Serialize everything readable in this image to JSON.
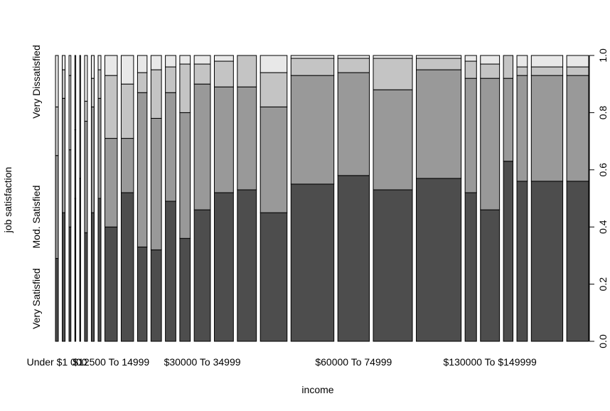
{
  "chart_data": {
    "type": "bar",
    "stacked": "proportional (spineplot)",
    "xlabel": "income",
    "ylabel": "job satisfaction",
    "ylim": [
      0,
      1
    ],
    "y_ticks": [
      "0.0",
      "0.2",
      "0.4",
      "0.6",
      "0.8",
      "1.0"
    ],
    "x_tick_labels": [
      "Under $1 000",
      "$12500 To 14999",
      "$30000 To 34999",
      "$60000 To 74999",
      "$130000 To $149999"
    ],
    "x_tick_label_positions": [
      0,
      8,
      14,
      19,
      23
    ],
    "categories_left_labels": [
      "Very Satisfied",
      "Mod. Satisfied",
      "Very Dissatisfied"
    ],
    "segment_colors": [
      "#4d4d4d",
      "#999999",
      "#c4c4c4",
      "#e8e8e8"
    ],
    "relative_widths": [
      3,
      3,
      2,
      1,
      1,
      3,
      3,
      3,
      13,
      13,
      10,
      11,
      11,
      11,
      17,
      20,
      20,
      28,
      45,
      33,
      41,
      47,
      12,
      20,
      10,
      11,
      33,
      23
    ],
    "boundaries": [
      [
        0.29,
        0.65,
        0.82
      ],
      [
        0.45,
        0.85,
        0.95
      ],
      [
        0.4,
        0.67,
        0.93
      ],
      [
        0.5,
        0.74,
        1.0
      ],
      [
        0.57,
        0.57,
        1.0
      ],
      [
        0.38,
        0.77,
        0.84
      ],
      [
        0.45,
        0.82,
        0.92
      ],
      [
        0.5,
        0.85,
        0.95
      ],
      [
        0.4,
        0.71,
        0.93
      ],
      [
        0.52,
        0.71,
        0.9
      ],
      [
        0.33,
        0.87,
        0.94
      ],
      [
        0.32,
        0.78,
        0.95
      ],
      [
        0.49,
        0.87,
        0.96
      ],
      [
        0.36,
        0.8,
        0.97
      ],
      [
        0.46,
        0.9,
        0.97
      ],
      [
        0.52,
        0.89,
        0.98
      ],
      [
        0.53,
        0.89,
        1.0
      ],
      [
        0.45,
        0.82,
        0.94
      ],
      [
        0.55,
        0.93,
        0.99
      ],
      [
        0.58,
        0.94,
        0.99
      ],
      [
        0.53,
        0.88,
        0.99
      ],
      [
        0.57,
        0.95,
        0.99
      ],
      [
        0.52,
        0.92,
        0.98
      ],
      [
        0.46,
        0.92,
        0.97
      ],
      [
        0.63,
        0.92,
        1.0
      ],
      [
        0.56,
        0.93,
        0.96
      ],
      [
        0.56,
        0.93,
        0.96
      ],
      [
        0.56,
        0.93,
        0.96
      ]
    ]
  }
}
